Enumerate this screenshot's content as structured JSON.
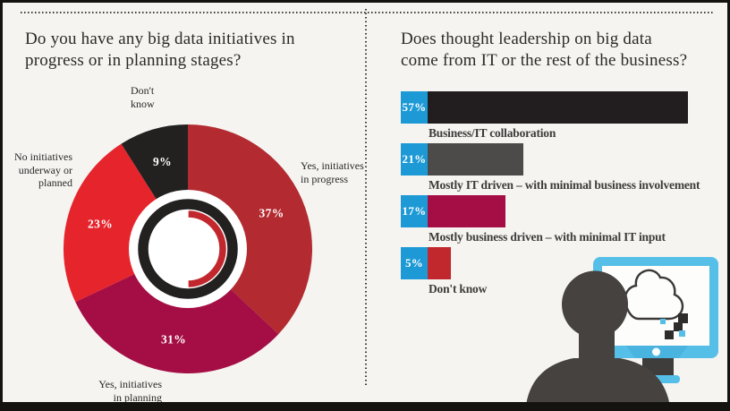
{
  "colors": {
    "background": "#f5f4f1",
    "frame_black": "#15130f",
    "title_text": "#2c2a28",
    "label_text": "#3e3c3a",
    "pct_badge_blue": "#1d9ad6",
    "monitor_blue": "#55bfe8",
    "silhouette_gray": "#454240",
    "donut_ring_black": "#232020",
    "donut_arc_red": "#c1272d"
  },
  "left_panel": {
    "title": "Do you have any big data initiatives in\nprogress or in planning stages?"
  },
  "right_panel": {
    "title": "Does thought leadership on big data\ncome from IT or the rest of the business?"
  },
  "chart_data": [
    {
      "type": "pie",
      "style": "donut",
      "title": "Do you have any big data initiatives in progress or in planning stages?",
      "start_angle_deg": 0,
      "direction": "clockwise",
      "slices": [
        {
          "label": "Yes, initiatives in progress",
          "value": 37,
          "pct": "37%",
          "color": "#b32b30"
        },
        {
          "label": "Yes, initiatives in planning",
          "value": 31,
          "pct": "31%",
          "color": "#a40e44"
        },
        {
          "label": "No initiatives underway or planned",
          "value": 23,
          "pct": "23%",
          "color": "#e6242c"
        },
        {
          "label": "Don't know",
          "value": 9,
          "pct": "9%",
          "color": "#232020"
        }
      ],
      "callouts": [
        {
          "text": "Don't\nknow"
        },
        {
          "text": "No initiatives\nunderway or\nplanned"
        },
        {
          "text": "Yes, initiatives\nin progress"
        },
        {
          "text": "Yes, initiatives\nin planning"
        }
      ]
    },
    {
      "type": "bar",
      "orientation": "horizontal",
      "title": "Does thought leadership on big data come from IT or the rest of the business?",
      "xlim": [
        0,
        57
      ],
      "bars": [
        {
          "label": "Business/IT collaboration",
          "value": 57,
          "pct": "57%",
          "color": "#221e1f"
        },
        {
          "label": "Mostly IT driven – with minimal business involvement",
          "value": 21,
          "pct": "21%",
          "color": "#4d4b4a"
        },
        {
          "label": "Mostly business driven – with minimal IT input",
          "value": 17,
          "pct": "17%",
          "color": "#a40e44"
        },
        {
          "label": "Don't know",
          "value": 5,
          "pct": "5%",
          "color": "#c0282e"
        }
      ]
    }
  ],
  "illustration": {
    "icons": [
      "person-silhouette",
      "monitor-icon",
      "cloud-icon",
      "pixel-squares"
    ]
  }
}
